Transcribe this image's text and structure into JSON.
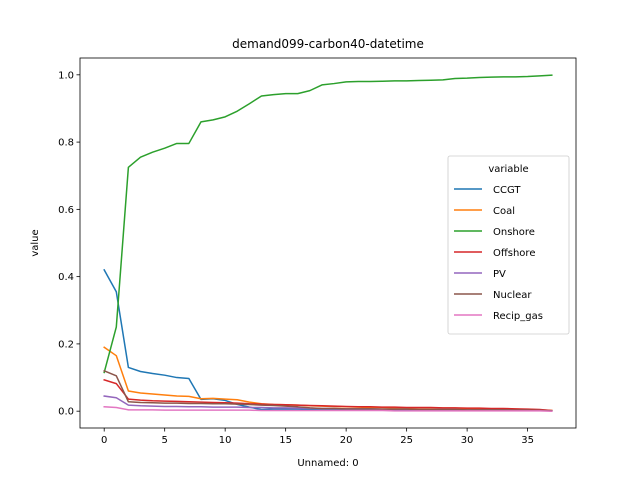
{
  "chart_data": {
    "type": "line",
    "title": "demand099-carbon40-datetime",
    "xlabel": "Unnamed: 0",
    "ylabel": "value",
    "xlim": [
      -2,
      39
    ],
    "ylim": [
      -0.05,
      1.05
    ],
    "xticks": [
      0,
      5,
      10,
      15,
      20,
      25,
      30,
      35
    ],
    "yticks": [
      0.0,
      0.2,
      0.4,
      0.6,
      0.8,
      1.0
    ],
    "grid": false,
    "legend": {
      "title": "variable",
      "placement": "center-right"
    },
    "x": [
      0,
      1,
      2,
      3,
      4,
      5,
      6,
      7,
      8,
      9,
      10,
      11,
      12,
      13,
      14,
      15,
      16,
      17,
      18,
      19,
      20,
      21,
      22,
      23,
      24,
      25,
      26,
      27,
      28,
      29,
      30,
      31,
      32,
      33,
      34,
      35,
      36,
      37
    ],
    "series": [
      {
        "name": "CCGT",
        "color": "#1f77b4",
        "values": [
          0.42,
          0.355,
          0.13,
          0.118,
          0.112,
          0.107,
          0.1,
          0.097,
          0.035,
          0.037,
          0.032,
          0.02,
          0.012,
          0.005,
          0.006,
          0.006,
          0.006,
          0.005,
          0.005,
          0.005,
          0.004,
          0.004,
          0.004,
          0.004,
          0.004,
          0.003,
          0.003,
          0.003,
          0.003,
          0.003,
          0.003,
          0.002,
          0.002,
          0.002,
          0.002,
          0.002,
          0.002,
          0.001
        ]
      },
      {
        "name": "Coal",
        "color": "#ff7f0e",
        "values": [
          0.19,
          0.165,
          0.06,
          0.054,
          0.051,
          0.048,
          0.045,
          0.044,
          0.037,
          0.038,
          0.036,
          0.034,
          0.027,
          0.022,
          0.02,
          0.019,
          0.018,
          0.016,
          0.015,
          0.014,
          0.013,
          0.012,
          0.011,
          0.011,
          0.01,
          0.01,
          0.01,
          0.01,
          0.009,
          0.009,
          0.008,
          0.007,
          0.006,
          0.006,
          0.006,
          0.005,
          0.004,
          0.002
        ]
      },
      {
        "name": "Onshore",
        "color": "#2ca02c",
        "values": [
          0.115,
          0.25,
          0.725,
          0.755,
          0.77,
          0.782,
          0.796,
          0.796,
          0.86,
          0.866,
          0.875,
          0.892,
          0.914,
          0.937,
          0.941,
          0.944,
          0.944,
          0.953,
          0.97,
          0.974,
          0.979,
          0.98,
          0.98,
          0.981,
          0.982,
          0.982,
          0.983,
          0.984,
          0.985,
          0.989,
          0.99,
          0.992,
          0.993,
          0.994,
          0.994,
          0.995,
          0.997,
          0.999
        ]
      },
      {
        "name": "Offshore",
        "color": "#d62728",
        "values": [
          0.093,
          0.082,
          0.036,
          0.033,
          0.031,
          0.03,
          0.029,
          0.028,
          0.027,
          0.026,
          0.025,
          0.024,
          0.022,
          0.021,
          0.02,
          0.019,
          0.018,
          0.017,
          0.016,
          0.015,
          0.014,
          0.013,
          0.013,
          0.012,
          0.012,
          0.011,
          0.011,
          0.011,
          0.01,
          0.01,
          0.009,
          0.009,
          0.008,
          0.008,
          0.007,
          0.006,
          0.005,
          0.002
        ]
      },
      {
        "name": "PV",
        "color": "#9467bd",
        "values": [
          0.045,
          0.04,
          0.018,
          0.016,
          0.015,
          0.014,
          0.014,
          0.013,
          0.013,
          0.012,
          0.012,
          0.012,
          0.011,
          0.011,
          0.01,
          0.01,
          0.009,
          0.009,
          0.008,
          0.008,
          0.007,
          0.007,
          0.007,
          0.006,
          0.006,
          0.006,
          0.005,
          0.005,
          0.005,
          0.005,
          0.004,
          0.004,
          0.004,
          0.004,
          0.003,
          0.003,
          0.002,
          0.001
        ]
      },
      {
        "name": "Nuclear",
        "color": "#8c564b",
        "values": [
          0.12,
          0.105,
          0.028,
          0.026,
          0.025,
          0.024,
          0.024,
          0.023,
          0.023,
          0.022,
          0.022,
          0.021,
          0.02,
          0.018,
          0.017,
          0.015,
          0.013,
          0.01,
          0.008,
          0.008,
          0.007,
          0.007,
          0.007,
          0.006,
          0.006,
          0.006,
          0.005,
          0.005,
          0.005,
          0.005,
          0.004,
          0.004,
          0.004,
          0.004,
          0.003,
          0.003,
          0.002,
          0.001
        ]
      },
      {
        "name": "Recip_gas",
        "color": "#e377c2",
        "values": [
          0.013,
          0.011,
          0.004,
          0.004,
          0.004,
          0.003,
          0.003,
          0.003,
          0.003,
          0.003,
          0.003,
          0.003,
          0.003,
          0.002,
          0.002,
          0.002,
          0.002,
          0.002,
          0.002,
          0.002,
          0.002,
          0.002,
          0.002,
          0.002,
          0.001,
          0.001,
          0.001,
          0.001,
          0.001,
          0.001,
          0.001,
          0.001,
          0.001,
          0.001,
          0.001,
          0.001,
          0.001,
          0.0
        ]
      }
    ]
  }
}
